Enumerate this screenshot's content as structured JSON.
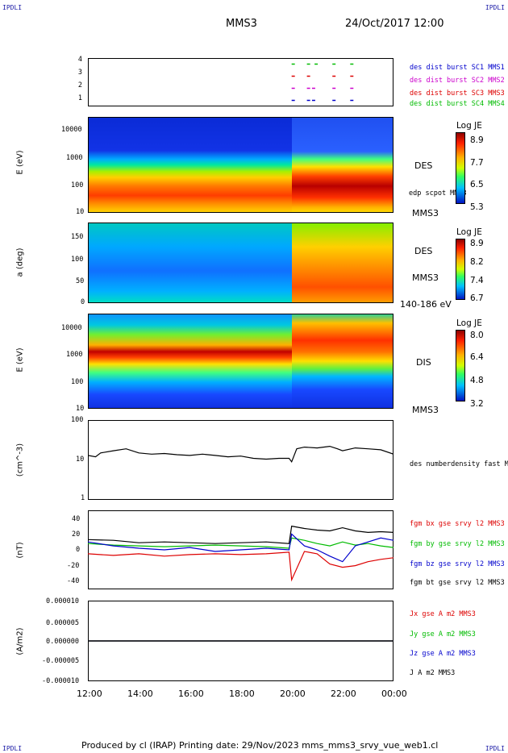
{
  "corners": {
    "tl": "IPDLI",
    "tr": "IPDLI",
    "bl": "IPDLI",
    "br": "IPDLI"
  },
  "header": {
    "title": "MMS3",
    "datetime": "24/Oct/2017 12:00"
  },
  "footer": {
    "text": "Produced by cl (IRAP)   Printing date: 29/Nov/2023   mms_mms3_srvy_vue_web1.cl"
  },
  "colors": {
    "mms1": "#0000cc",
    "mms2": "#cc00cc",
    "mms3": "#dd0000",
    "mms4": "#00bb00",
    "black": "#000000"
  },
  "chart_data": [
    {
      "type": "scatter",
      "id": "burst-availability",
      "yticks": [
        "1",
        "2",
        "3",
        "4"
      ],
      "ylim": [
        0.5,
        4.5
      ],
      "xticks": [
        "12:00",
        "14:00",
        "16:00",
        "18:00",
        "20:00",
        "22:00",
        "00:00"
      ],
      "xlim_hours": [
        12,
        24
      ],
      "series": [
        {
          "name": "des dist burst SC1 MMS1",
          "y": 1,
          "color": "#0000cc",
          "x": [
            20.0,
            20.6,
            20.8,
            21.6,
            22.3
          ]
        },
        {
          "name": "des dist burst SC2 MMS2",
          "y": 2,
          "color": "#cc00cc",
          "x": [
            20.0,
            20.6,
            20.8,
            21.6,
            22.3
          ]
        },
        {
          "name": "des dist burst SC3 MMS3",
          "y": 3,
          "color": "#dd0000",
          "x": [
            20.0,
            20.6,
            21.6,
            22.3
          ]
        },
        {
          "name": "des dist burst SC4 MMS4",
          "y": 4,
          "color": "#00bb00",
          "x": [
            20.0,
            20.6,
            20.9,
            21.6,
            22.3
          ]
        }
      ]
    },
    {
      "type": "heatmap",
      "id": "des-energy",
      "ylabel": "E (eV)",
      "yticks": [
        "10",
        "100",
        "1000",
        "10000"
      ],
      "ylog": true,
      "ylim": [
        10,
        30000
      ],
      "right_labels": [
        "DES",
        "MMS3"
      ],
      "overlay_label": "edp scpot MMS3",
      "colorbar": {
        "title": "Log JE",
        "ticks": [
          "8.9",
          "7.7",
          "6.5",
          "5.3"
        ]
      }
    },
    {
      "type": "heatmap",
      "id": "des-pitch-angle",
      "ylabel": "a (deg)",
      "yticks": [
        "0",
        "50",
        "100",
        "150"
      ],
      "ylim": [
        0,
        180
      ],
      "right_labels": [
        "DES",
        "MMS3",
        "140-186 eV"
      ],
      "colorbar": {
        "title": "Log JE",
        "ticks": [
          "8.9",
          "8.2",
          "7.4",
          "6.7"
        ]
      }
    },
    {
      "type": "heatmap",
      "id": "dis-energy",
      "ylabel": "E (eV)",
      "yticks": [
        "10",
        "100",
        "1000",
        "10000"
      ],
      "ylog": true,
      "ylim": [
        10,
        30000
      ],
      "right_labels": [
        "DIS",
        "MMS3"
      ],
      "colorbar": {
        "title": "Log JE",
        "ticks": [
          "8.0",
          "6.4",
          "4.8",
          "3.2"
        ]
      }
    },
    {
      "type": "line",
      "id": "density",
      "ylabel": "(cm^-3)",
      "yticks": [
        "1",
        "10",
        "100"
      ],
      "ylog": true,
      "ylim": [
        1,
        100
      ],
      "series": [
        {
          "name": "des numberdensity fast M",
          "color": "#000000",
          "x": [
            12.0,
            12.3,
            12.5,
            13.0,
            13.5,
            14.0,
            14.5,
            15.0,
            15.5,
            16.0,
            16.5,
            17.0,
            17.5,
            18.0,
            18.5,
            19.0,
            19.5,
            19.9,
            20.0,
            20.2,
            20.5,
            21.0,
            21.5,
            21.8,
            22.0,
            22.5,
            23.0,
            23.5,
            24.0
          ],
          "values": [
            13,
            12,
            15,
            17,
            19,
            15,
            14,
            14.5,
            13.5,
            13,
            14,
            13,
            12,
            12.5,
            11,
            10.5,
            11,
            11,
            9,
            19,
            21,
            20,
            22,
            19,
            17,
            20,
            19,
            18,
            14
          ]
        }
      ]
    },
    {
      "type": "line",
      "id": "magnetic-field",
      "ylabel": "(nT)",
      "yticks": [
        "-40",
        "-20",
        "0",
        "20",
        "40"
      ],
      "ylim": [
        -50,
        50
      ],
      "series": [
        {
          "name": "fgm bx gse srvy l2 MMS3",
          "color": "#dd0000",
          "x": [
            12.0,
            13.0,
            14.0,
            15.0,
            16.0,
            17.0,
            18.0,
            19.0,
            19.9,
            20.0,
            20.5,
            21.0,
            21.5,
            22.0,
            22.5,
            23.0,
            23.5,
            24.0
          ],
          "values": [
            -5,
            -7,
            -5,
            -8,
            -6,
            -5,
            -6,
            -5,
            -3,
            -38,
            -2,
            -5,
            -18,
            -22,
            -20,
            -15,
            -12,
            -10
          ]
        },
        {
          "name": "fgm by gse srvy l2 MMS3",
          "color": "#00bb00",
          "x": [
            12.0,
            13.0,
            14.0,
            15.0,
            16.0,
            17.0,
            18.0,
            19.0,
            19.9,
            20.0,
            20.5,
            21.0,
            21.5,
            22.0,
            22.5,
            23.0,
            23.5,
            24.0
          ],
          "values": [
            8,
            6,
            5,
            4,
            5,
            6,
            5,
            4,
            2,
            15,
            12,
            8,
            5,
            10,
            6,
            8,
            5,
            3
          ]
        },
        {
          "name": "fgm bz gse srvy l2 MMS3",
          "color": "#0000cc",
          "x": [
            12.0,
            13.0,
            14.0,
            15.0,
            16.0,
            17.0,
            18.0,
            19.0,
            19.9,
            20.0,
            20.5,
            21.0,
            21.5,
            22.0,
            22.5,
            23.0,
            23.5,
            24.0
          ],
          "values": [
            10,
            5,
            2,
            0,
            3,
            -2,
            0,
            2,
            0,
            20,
            5,
            0,
            -8,
            -15,
            5,
            10,
            15,
            12
          ]
        },
        {
          "name": "fgm bt gse srvy l2 MMS3",
          "color": "#000000",
          "x": [
            12.0,
            13.0,
            14.0,
            15.0,
            16.0,
            17.0,
            18.0,
            19.0,
            19.9,
            20.0,
            20.5,
            21.0,
            21.5,
            22.0,
            22.5,
            23.0,
            23.5,
            24.0
          ],
          "values": [
            13,
            12,
            9,
            10,
            9,
            8,
            9,
            10,
            8,
            30,
            27,
            25,
            24,
            28,
            24,
            22,
            23,
            22
          ]
        }
      ]
    },
    {
      "type": "line",
      "id": "current-density",
      "ylabel": "(A/m2)",
      "yticks": [
        "0.000010",
        "0.000005",
        "0.000000",
        "-0.000005",
        "-0.000010"
      ],
      "ylim": [
        -1e-05,
        1e-05
      ],
      "series": [
        {
          "name": "Jx gse A m2 MMS3",
          "color": "#dd0000",
          "x": [
            12.0,
            24.0
          ],
          "values": [
            0,
            0
          ]
        },
        {
          "name": "Jy gse A m2 MMS3",
          "color": "#00bb00",
          "x": [
            12.0,
            24.0
          ],
          "values": [
            0,
            0
          ]
        },
        {
          "name": "Jz gse A m2 MMS3",
          "color": "#0000cc",
          "x": [
            12.0,
            24.0
          ],
          "values": [
            0,
            0
          ]
        },
        {
          "name": "J A m2 MMS3",
          "color": "#000000",
          "x": [
            12.0,
            24.0
          ],
          "values": [
            0,
            0
          ]
        }
      ]
    }
  ]
}
